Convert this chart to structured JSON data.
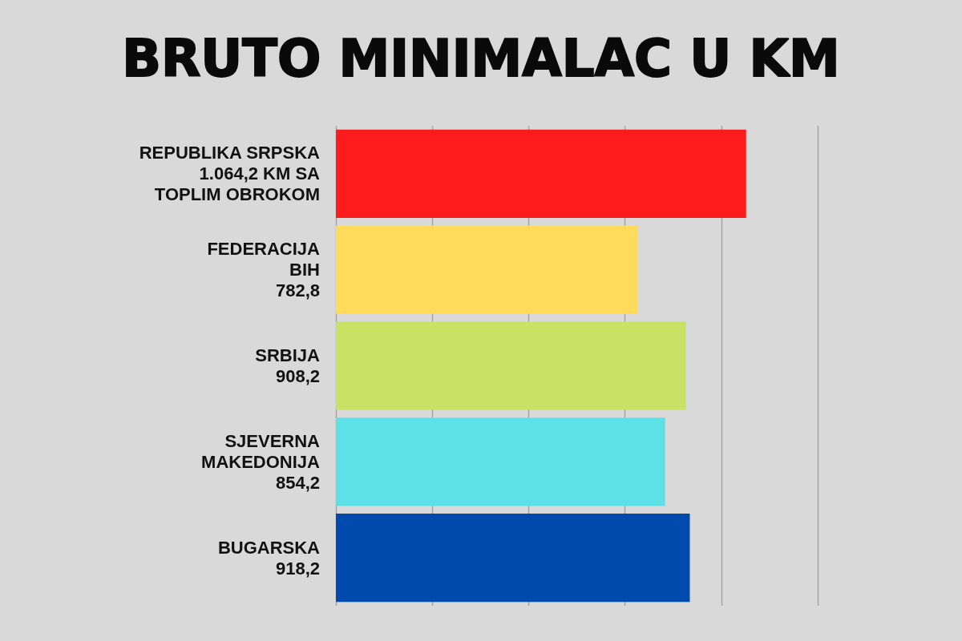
{
  "chart_data": {
    "type": "bar",
    "orientation": "horizontal",
    "title": "BRUTO MINIMALAC U KM",
    "categories": [
      "REPUBLIKA SRPSKA",
      "FEDERACIJA\nBIH",
      "SRBIJA",
      "SJEVERNA\nMAKEDONIJA",
      "BUGARSKA"
    ],
    "values": [
      1064.2,
      782.8,
      908.2,
      854.2,
      918.2
    ],
    "value_labels": [
      "1.064,2 KM SA\nTOPLIM OBROKOM",
      "782,8",
      "908,2",
      "854,2",
      "918,2"
    ],
    "colors": [
      "#fe1b1b",
      "#ffdb5c",
      "#c9e165",
      "#5ce1e6",
      "#004aad"
    ],
    "xlim": [
      0,
      1250
    ],
    "xticks": [
      {
        "value": 0,
        "label": null
      },
      {
        "value": 250,
        "label": null
      },
      {
        "value": 500,
        "label": null
      },
      {
        "value": 750,
        "label": null
      },
      {
        "value": 1000,
        "label": null
      },
      {
        "value": 1250,
        "label": null
      }
    ],
    "grid": "x",
    "tick_labels": "y"
  }
}
